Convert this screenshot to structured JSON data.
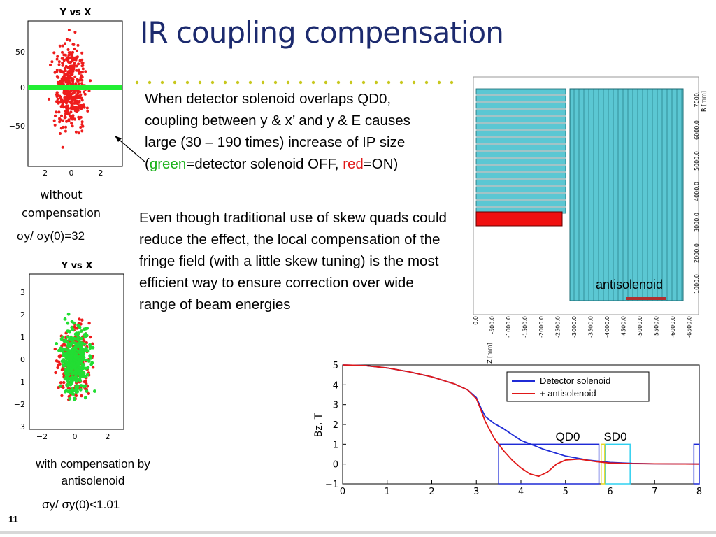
{
  "title": "IR coupling compensation",
  "paragraph1": {
    "pre": "When detector solenoid overlaps QD0, coupling between y & x’ and y & E causes large (30 – 190 times) increase of IP size (",
    "green_word": "green",
    "mid": "=detector solenoid OFF, ",
    "red_word": "red",
    "post": "=ON)"
  },
  "paragraph2": "Even though traditional use of skew quads could reduce the effect, the local compensation of the fringe field (with a little skew tuning) is the most efficient way to ensure correction over wide range of beam energies",
  "plot_top": {
    "title": "Y  vs X",
    "yticks": [
      "50",
      "0",
      "−50"
    ],
    "xticks": [
      "−2",
      "0",
      "2"
    ]
  },
  "plot_bottom": {
    "title": "Y  vs X",
    "yticks": [
      "3",
      "2",
      "1",
      "0",
      "−1",
      "−2",
      "−3"
    ],
    "xticks": [
      "−2",
      "0",
      "2"
    ]
  },
  "caption_without": "without compensation",
  "ratio_without": "σy/ σy(0)=32",
  "caption_with": "with compensation by antisolenoid",
  "ratio_with": "σy/ σy(0)<1.01",
  "slide_number": "11",
  "field_map": {
    "label": "antisolenoid",
    "r_axis_label": "R [mm]",
    "z_axis_label": "Z [mm]",
    "r_ticks": [
      "7000.",
      "6000.0",
      "5000.0",
      "4000.0",
      "3000.0",
      "2000.0",
      "1000.0"
    ],
    "z_ticks": [
      "0.0",
      "-500.0",
      "-1000.0",
      "-1500.0",
      "-2000.0",
      "-2500.0",
      "-3000.0",
      "-3500.0",
      "-4000.0",
      "-4500.0",
      "-5000.0",
      "-5500.0",
      "-6000.0",
      "-6500.0"
    ]
  },
  "chart_data": {
    "type": "line",
    "ylabel": "Bz, T",
    "xlabel": "",
    "xlim": [
      0,
      8
    ],
    "ylim": [
      -1,
      5
    ],
    "xticks": [
      "0",
      "1",
      "2",
      "3",
      "4",
      "5",
      "6",
      "7",
      "8"
    ],
    "yticks": [
      "5",
      "4",
      "3",
      "2",
      "1",
      "0",
      "−1"
    ],
    "legend_position": "top-right",
    "annotations": [
      "QD0",
      "SD0"
    ],
    "series": [
      {
        "name": "Detector solenoid",
        "color": "#1f2bd6",
        "x": [
          0,
          0.5,
          1,
          1.5,
          2,
          2.5,
          2.8,
          3.0,
          3.1,
          3.2,
          3.4,
          3.6,
          3.8,
          4.0,
          4.5,
          5.0,
          5.5,
          6.0,
          6.5,
          7,
          8
        ],
        "y": [
          5,
          4.97,
          4.85,
          4.65,
          4.4,
          4.05,
          3.75,
          3.35,
          2.85,
          2.4,
          2.05,
          1.8,
          1.5,
          1.2,
          0.75,
          0.4,
          0.2,
          0.08,
          0.03,
          0.01,
          0
        ]
      },
      {
        "name": "+ antisolenoid",
        "color": "#e01818",
        "x": [
          0,
          0.5,
          1,
          1.5,
          2,
          2.5,
          2.8,
          3.0,
          3.1,
          3.2,
          3.4,
          3.6,
          3.8,
          4.0,
          4.2,
          4.4,
          4.6,
          4.8,
          5.0,
          5.3,
          5.7,
          6.0,
          6.5,
          7,
          8
        ],
        "y": [
          5,
          4.97,
          4.85,
          4.65,
          4.4,
          4.05,
          3.75,
          3.3,
          2.75,
          2.15,
          1.3,
          0.7,
          0.2,
          -0.2,
          -0.5,
          -0.62,
          -0.4,
          0.0,
          0.2,
          0.25,
          0.12,
          0.05,
          0.02,
          0.01,
          0
        ]
      }
    ]
  },
  "colors": {
    "title": "#1c2a6e",
    "green": "#19b219",
    "red": "#e01818",
    "coil": "#5bc7d3"
  }
}
